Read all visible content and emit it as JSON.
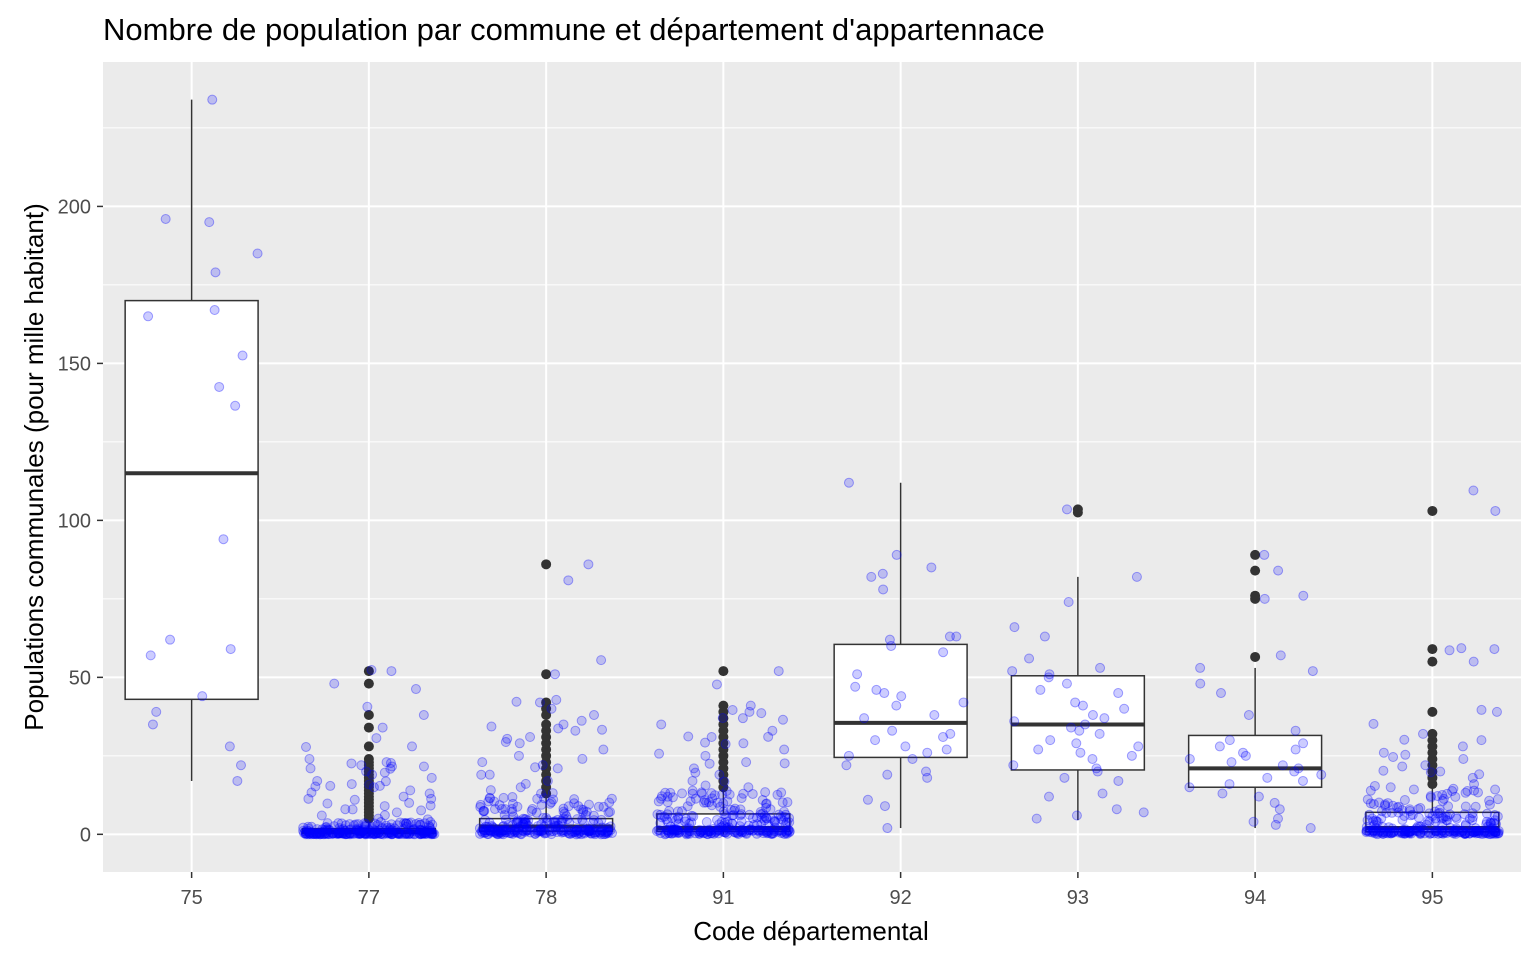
{
  "chart_data": {
    "type": "boxplot",
    "title": "Nombre de population par commune et département d'appartennace",
    "xlabel": "Code départemental",
    "ylabel": "Populations communales (pour mille habitant)",
    "categories": [
      "75",
      "77",
      "78",
      "91",
      "92",
      "93",
      "94",
      "95"
    ],
    "ylim": [
      -12,
      246
    ],
    "yticks": [
      0,
      50,
      100,
      150,
      200
    ],
    "grid": true,
    "legend": "none",
    "colors": {
      "panel": "#ebebeb",
      "grid": "#ffffff",
      "box_fill": "#ffffff",
      "box_line": "#333333",
      "jitter": "#0000ff",
      "outlier": "#333333",
      "tick_text": "#4d4d4d"
    },
    "boxes": [
      {
        "category": "75",
        "lower_whisker": 17,
        "q1": 43,
        "median": 115,
        "q3": 170,
        "upper_whisker": 234,
        "outliers": []
      },
      {
        "category": "77",
        "lower_whisker": 0,
        "q1": 0.3,
        "median": 0.8,
        "q3": 1.8,
        "upper_whisker": 4,
        "outliers": [
          5,
          6,
          7,
          8,
          9,
          10,
          11,
          12,
          13,
          14,
          15,
          16,
          17,
          18,
          19,
          20,
          21,
          22,
          23,
          24,
          28,
          34,
          38,
          48,
          52
        ]
      },
      {
        "category": "78",
        "lower_whisker": 0,
        "q1": 1,
        "median": 2.5,
        "q3": 5,
        "upper_whisker": 12,
        "outliers": [
          13,
          15,
          17,
          19,
          21,
          23,
          25,
          27,
          29,
          31,
          33,
          35,
          38,
          40,
          42,
          51,
          86
        ]
      },
      {
        "category": "91",
        "lower_whisker": 0,
        "q1": 1,
        "median": 2,
        "q3": 6.5,
        "upper_whisker": 14,
        "outliers": [
          15,
          17,
          19,
          21,
          23,
          25,
          27,
          29,
          31,
          33,
          35,
          37,
          39,
          41,
          52
        ]
      },
      {
        "category": "92",
        "lower_whisker": 2,
        "q1": 24.5,
        "median": 35.5,
        "q3": 60.5,
        "upper_whisker": 112,
        "outliers": []
      },
      {
        "category": "93",
        "lower_whisker": 4.5,
        "q1": 20.5,
        "median": 35,
        "q3": 50.5,
        "upper_whisker": 82,
        "outliers": [
          102.5,
          103.5
        ]
      },
      {
        "category": "94",
        "lower_whisker": 2,
        "q1": 15,
        "median": 21,
        "q3": 31.5,
        "upper_whisker": 53,
        "outliers": [
          56.5,
          75,
          76,
          84,
          89
        ]
      },
      {
        "category": "95",
        "lower_whisker": 0,
        "q1": 0.8,
        "median": 2,
        "q3": 7,
        "upper_whisker": 15,
        "outliers": [
          16,
          18,
          20,
          22,
          24,
          26,
          28,
          30,
          32,
          39,
          55,
          59,
          103
        ]
      }
    ],
    "jitter_points": [
      {
        "category": "75",
        "values": [
          234,
          196,
          195,
          185,
          179,
          167,
          165,
          152.5,
          142.5,
          136.5,
          94,
          62,
          59,
          57,
          44,
          39,
          35,
          28,
          22,
          17
        ]
      },
      {
        "category": "92",
        "values": [
          112,
          89,
          85,
          83,
          82,
          78,
          63,
          63,
          62,
          60,
          58,
          51,
          47,
          46,
          45,
          44,
          42,
          41,
          38,
          37,
          33,
          32,
          31,
          30,
          28,
          27,
          26,
          25,
          24,
          22,
          20,
          19,
          18,
          11,
          9,
          2
        ]
      },
      {
        "category": "93",
        "values": [
          103.5,
          82,
          74,
          66,
          63,
          56,
          53,
          52,
          51,
          50,
          48,
          46,
          45,
          42,
          41,
          40,
          38,
          37,
          36,
          35,
          34,
          33,
          32,
          30,
          29,
          28,
          27,
          26,
          25,
          24,
          22,
          21,
          20,
          18,
          17,
          13,
          12,
          8,
          7,
          6,
          5
        ]
      },
      {
        "category": "94",
        "values": [
          89,
          84,
          76,
          75,
          57,
          53,
          52,
          48,
          45,
          38,
          33,
          30,
          29,
          28,
          27,
          26,
          25,
          24,
          23,
          22,
          21,
          20,
          19,
          18,
          17,
          16,
          15,
          13,
          12,
          10,
          8,
          5,
          4,
          3,
          2
        ]
      }
    ]
  }
}
